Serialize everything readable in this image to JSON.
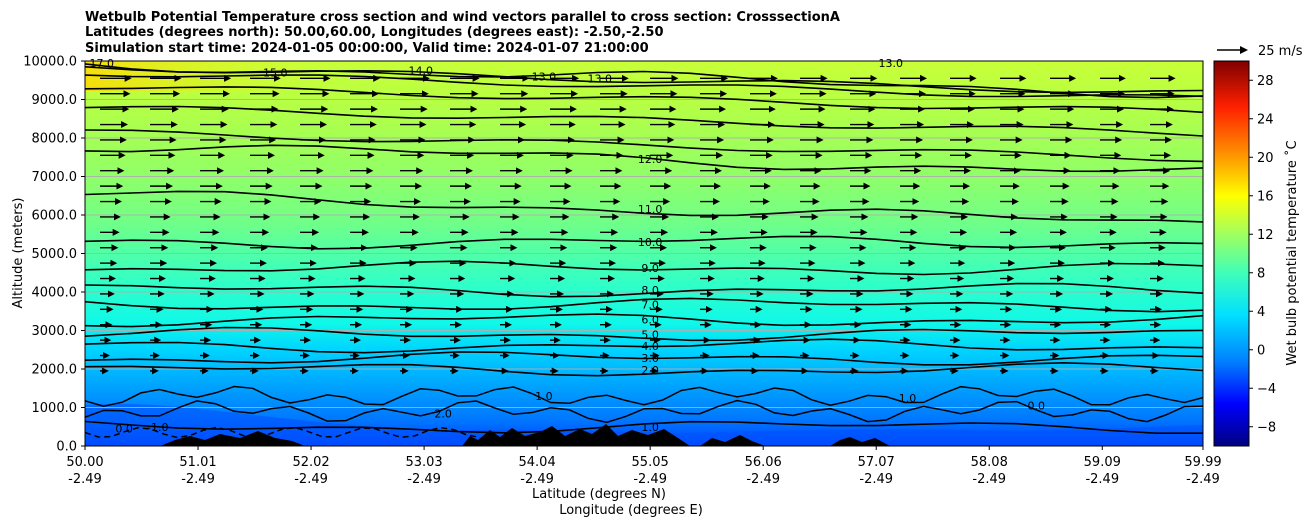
{
  "chart_data": {
    "type": "heatmap",
    "title_lines": [
      "Wetbulb Potential Temperature cross section and wind vectors parallel to cross section: CrosssectionA",
      "Latitudes (degrees north): 50.00,60.00, Longitudes (degrees east): -2.50,-2.50",
      "Simulation start time: 2024-01-05 00:00:00, Valid time: 2024-01-07 21:00:00"
    ],
    "ylabel": "Altitude (meters)",
    "xlabel_lines": [
      "Latitude (degrees N)",
      "Longitude (degrees E)"
    ],
    "x_ticks": [
      {
        "lat": "50.00",
        "lon": "-2.49",
        "v": 50.0
      },
      {
        "lat": "51.01",
        "lon": "-2.49",
        "v": 51.01
      },
      {
        "lat": "52.02",
        "lon": "-2.49",
        "v": 52.02
      },
      {
        "lat": "53.03",
        "lon": "-2.49",
        "v": 53.03
      },
      {
        "lat": "54.04",
        "lon": "-2.49",
        "v": 54.04
      },
      {
        "lat": "55.05",
        "lon": "-2.49",
        "v": 55.05
      },
      {
        "lat": "56.06",
        "lon": "-2.49",
        "v": 56.06
      },
      {
        "lat": "57.07",
        "lon": "-2.49",
        "v": 57.07
      },
      {
        "lat": "58.08",
        "lon": "-2.49",
        "v": 58.08
      },
      {
        "lat": "59.09",
        "lon": "-2.49",
        "v": 59.09
      },
      {
        "lat": "59.99",
        "lon": "-2.49",
        "v": 59.99
      }
    ],
    "xlim": [
      50.0,
      59.99
    ],
    "y_ticks": [
      "0.0",
      "1000.0",
      "2000.0",
      "3000.0",
      "4000.0",
      "5000.0",
      "6000.0",
      "7000.0",
      "8000.0",
      "9000.0",
      "10000.0"
    ],
    "ylim": [
      0,
      10000
    ],
    "grid": "horizontal",
    "colorbar": {
      "label": "Wet bulb potential temperature ˚C",
      "range": [
        -10,
        30
      ],
      "ticks": [
        "−8",
        "−4",
        "0",
        "4",
        "8",
        "12",
        "16",
        "20",
        "24",
        "28"
      ]
    },
    "quiver_key": {
      "label": "25 m/s"
    },
    "contour_levels": [
      {
        "value": 13.0,
        "label": "13.0",
        "lat": 54.6,
        "alt": 9550
      },
      {
        "value": 12.0,
        "label": "12.0",
        "lat": 55.05,
        "alt": 7450
      },
      {
        "value": 11.0,
        "label": "11.0",
        "lat": 55.05,
        "alt": 6150
      },
      {
        "value": 10.0,
        "label": "10.0",
        "lat": 55.05,
        "alt": 5300
      },
      {
        "value": 9.0,
        "label": "9.0",
        "lat": 55.05,
        "alt": 4620
      },
      {
        "value": 8.0,
        "label": "8.0",
        "lat": 55.05,
        "alt": 4050
      },
      {
        "value": 7.0,
        "label": "7.0",
        "lat": 55.05,
        "alt": 3670
      },
      {
        "value": 6.0,
        "label": "6.0",
        "lat": 55.05,
        "alt": 3280
      },
      {
        "value": 5.0,
        "label": "5.0",
        "lat": 55.05,
        "alt": 2900
      },
      {
        "value": 4.0,
        "label": "4.0",
        "lat": 55.05,
        "alt": 2600
      },
      {
        "value": 3.0,
        "label": "3.0",
        "lat": 55.05,
        "alt": 2280
      },
      {
        "value": 2.0,
        "label": "2.0",
        "lat": 55.05,
        "alt": 1980
      },
      {
        "value": 1.0,
        "label": "1.0",
        "lat": 55.05,
        "alt": 500
      }
    ],
    "extra_contour_labels": [
      {
        "label": "17.0",
        "lat": 50.15,
        "alt": 9950
      },
      {
        "label": "15.0",
        "lat": 51.7,
        "alt": 9700
      },
      {
        "label": "14.0",
        "lat": 53.0,
        "alt": 9750
      },
      {
        "label": "13.0",
        "lat": 54.1,
        "alt": 9600
      },
      {
        "label": "13.0",
        "lat": 57.2,
        "alt": 9950
      },
      {
        "label": "2.0",
        "lat": 53.2,
        "alt": 850
      },
      {
        "label": "1.0",
        "lat": 54.1,
        "alt": 1300
      },
      {
        "label": "0.0",
        "lat": 50.35,
        "alt": 450
      },
      {
        "label": "-1.0",
        "lat": 50.65,
        "alt": 500
      },
      {
        "label": "0.0",
        "lat": 58.5,
        "alt": 1050
      },
      {
        "label": "1.0",
        "lat": 57.35,
        "alt": 1250
      }
    ]
  }
}
